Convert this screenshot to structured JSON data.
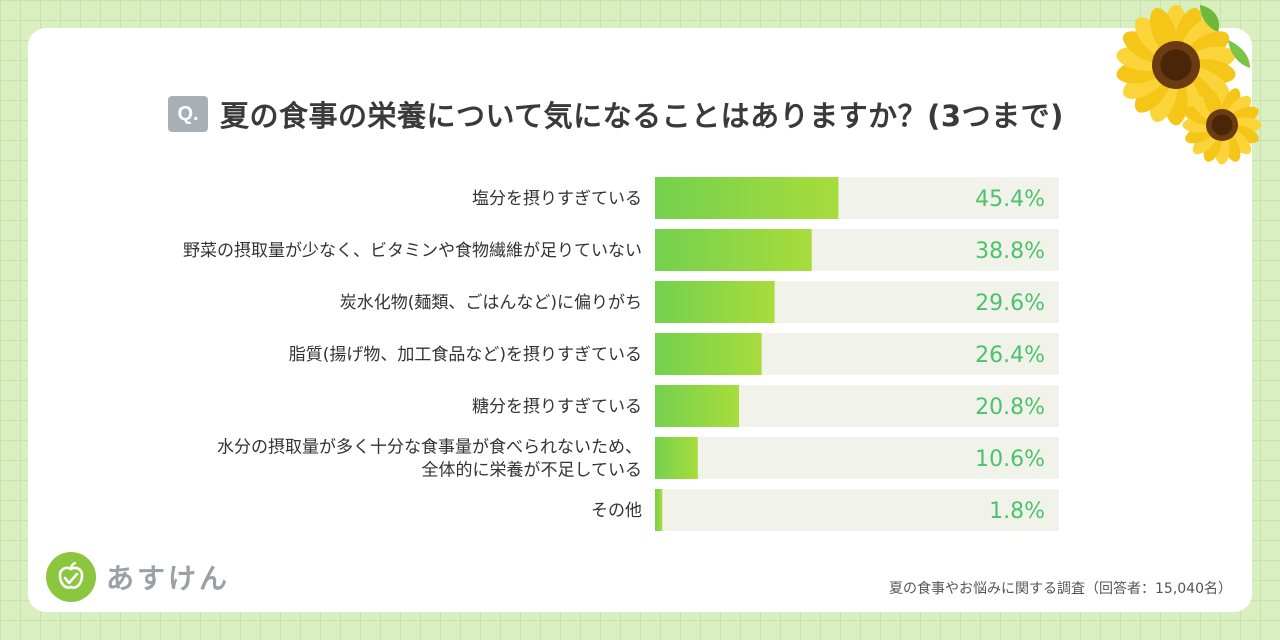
{
  "header": {
    "badge": "Q.",
    "title": "夏の食事の栄養について気になることはありますか？(3つまで)"
  },
  "chart_data": {
    "type": "bar",
    "orientation": "horizontal",
    "categories": [
      [
        "塩分を摂りすぎている"
      ],
      [
        "野菜の摂取量が少なく、ビタミンや食物繊維が足りていない"
      ],
      [
        "炭水化物(麺類、ごはんなど)に偏りがち"
      ],
      [
        "脂質(揚げ物、加工食品など)を摂りすぎている"
      ],
      [
        "糖分を摂りすぎている"
      ],
      [
        "水分の摂取量が多く十分な食事量が食べられないため、",
        "全体的に栄養が不足している"
      ],
      [
        "その他"
      ]
    ],
    "values": [
      45.4,
      38.8,
      29.6,
      26.4,
      20.8,
      10.6,
      1.8
    ],
    "value_labels": [
      "45.4%",
      "38.8%",
      "29.6%",
      "26.4%",
      "20.8%",
      "10.6%",
      "1.8%"
    ],
    "xlim": [
      0,
      100
    ],
    "colors": {
      "bar_start": "#74d14e",
      "bar_end": "#a8dc3c",
      "track": "#f1f3ea",
      "value_text": "#4cc26a"
    }
  },
  "footer": {
    "brand": "あすけん",
    "source": "夏の食事やお悩みに関する調査（回答者：15,040名）"
  },
  "decor": {
    "icon": "sunflower-icon",
    "logo_icon": "apple-icon"
  }
}
